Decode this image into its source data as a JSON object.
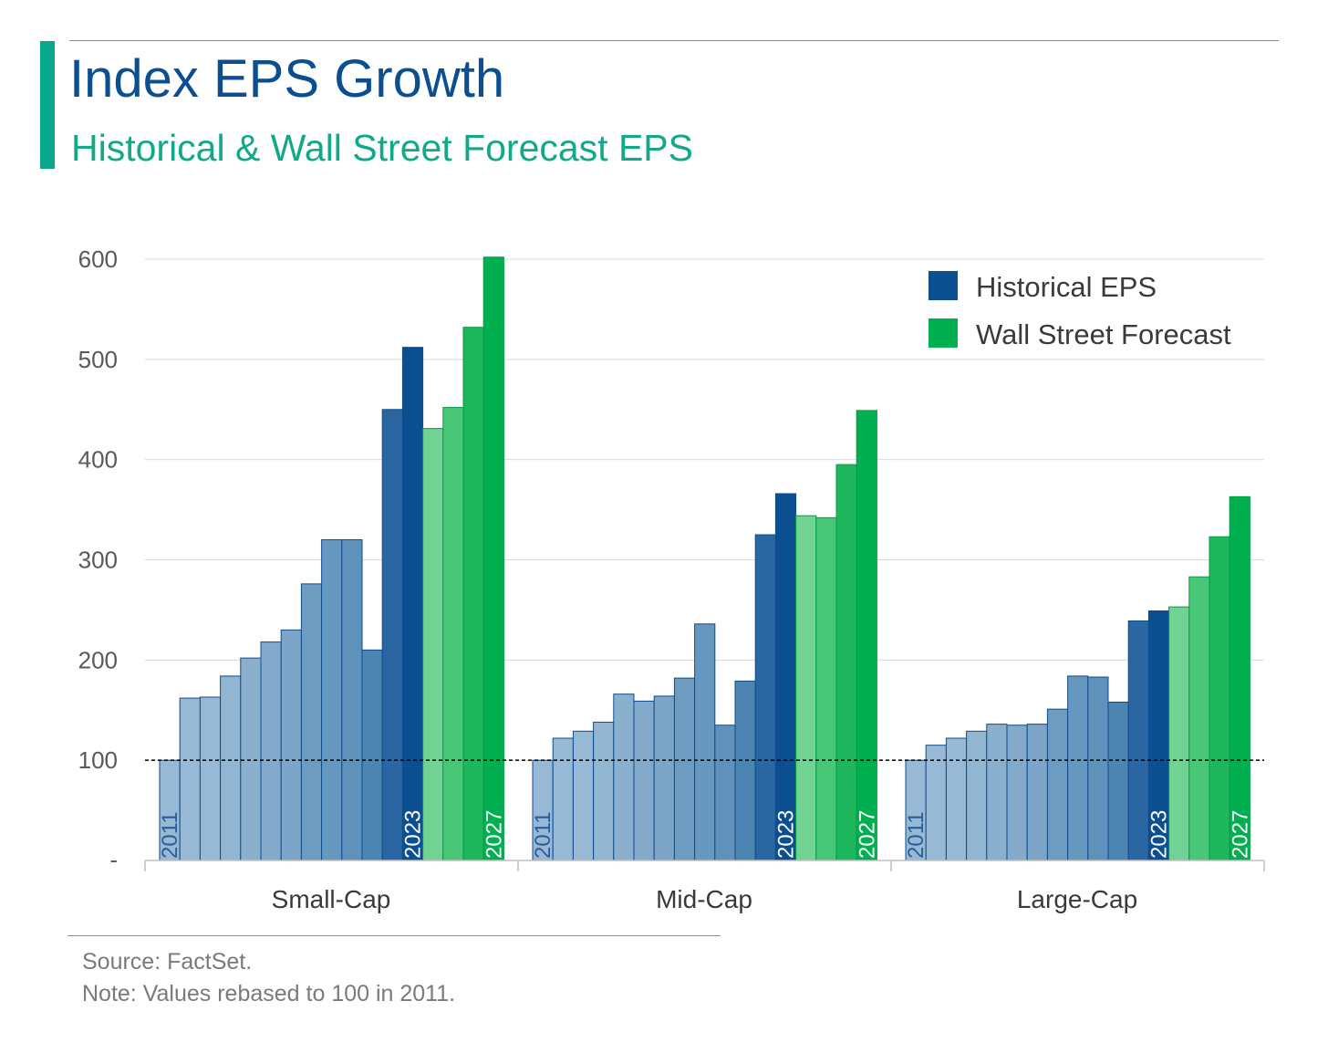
{
  "header": {
    "title": "Index EPS Growth",
    "subtitle": "Historical & Wall Street Forecast EPS"
  },
  "footer": {
    "source": "Source: FactSet.",
    "note": "Note: Values rebased to 100 in 2011."
  },
  "colors": {
    "historical": "#0b4f91",
    "forecast": "#00b050",
    "grid": "#d9d9d9",
    "axis_text": "#595959",
    "accent": "#0aa88a"
  },
  "chart_data": {
    "type": "bar",
    "title": "Index EPS Growth",
    "subtitle": "Historical & Wall Street Forecast EPS",
    "ylim": [
      0,
      600
    ],
    "yticks": [
      {
        "value": 0,
        "label": "-"
      },
      {
        "value": 100,
        "label": "100"
      },
      {
        "value": 200,
        "label": "200"
      },
      {
        "value": 300,
        "label": "300"
      },
      {
        "value": 400,
        "label": "400"
      },
      {
        "value": 500,
        "label": "500"
      },
      {
        "value": 600,
        "label": "600"
      }
    ],
    "reference_line": 100,
    "grid": true,
    "legend": {
      "position": "top-right",
      "entries": [
        {
          "name": "Historical EPS",
          "color": "#0b4f91"
        },
        {
          "name": "Wall Street Forecast",
          "color": "#00b050"
        }
      ]
    },
    "years": [
      2011,
      2012,
      2013,
      2014,
      2015,
      2016,
      2017,
      2018,
      2019,
      2020,
      2021,
      2022,
      2023,
      2024,
      2025,
      2026,
      2027
    ],
    "historical_years": [
      2011,
      2012,
      2013,
      2014,
      2015,
      2016,
      2017,
      2018,
      2019,
      2020,
      2021,
      2022,
      2023
    ],
    "forecast_years": [
      2024,
      2025,
      2026,
      2027
    ],
    "bar_labels": [
      {
        "year": 2011,
        "text": "2011"
      },
      {
        "year": 2023,
        "text": "2023"
      },
      {
        "year": 2027,
        "text": "2027"
      }
    ],
    "groups": [
      {
        "name": "Small-Cap",
        "values": [
          100,
          162,
          163,
          184,
          202,
          218,
          230,
          276,
          320,
          320,
          210,
          450,
          512,
          431,
          452,
          532,
          602
        ]
      },
      {
        "name": "Mid-Cap",
        "values": [
          100,
          122,
          129,
          138,
          166,
          159,
          164,
          182,
          236,
          135,
          179,
          325,
          366,
          344,
          342,
          395,
          449
        ]
      },
      {
        "name": "Large-Cap",
        "values": [
          100,
          115,
          122,
          129,
          136,
          135,
          136,
          151,
          184,
          183,
          158,
          239,
          249,
          253,
          283,
          323,
          363
        ]
      }
    ]
  }
}
